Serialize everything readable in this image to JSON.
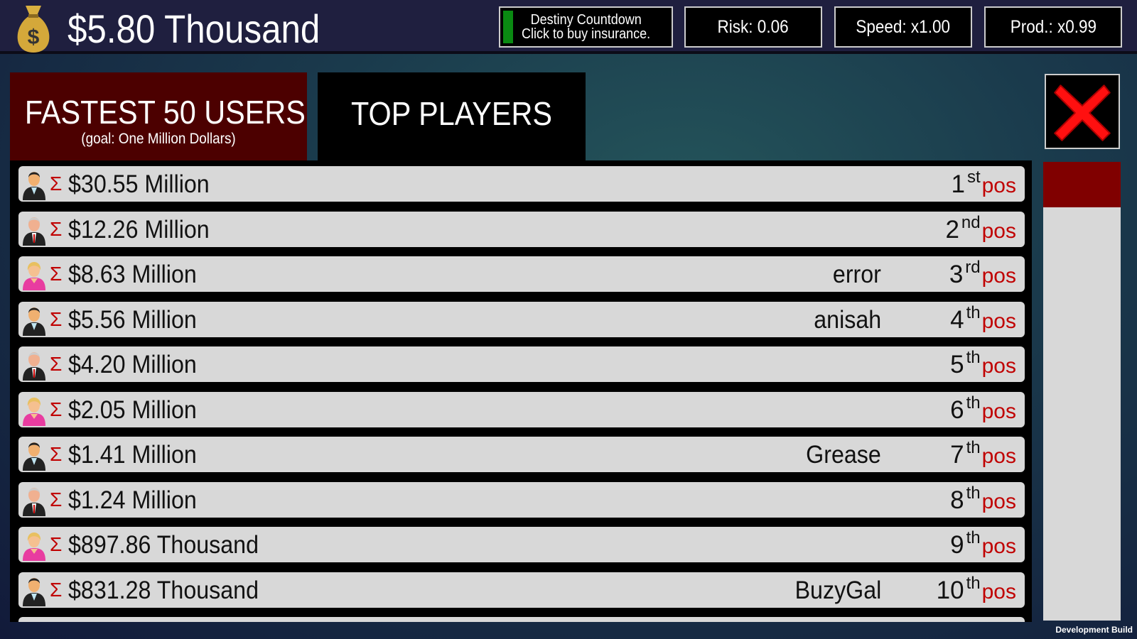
{
  "header": {
    "money": "$5.80 Thousand",
    "destiny_line1": "Destiny Countdown",
    "destiny_line2": "Click to buy insurance.",
    "risk": "Risk: 0.06",
    "speed": "Speed: x1.00",
    "prod": "Prod.: x0.99"
  },
  "tabs": [
    {
      "label": "FASTEST 50 USERS",
      "sub": "(goal: One Million Dollars)",
      "active": true
    },
    {
      "label": "TOP PLAYERS"
    }
  ],
  "sigma": "Σ",
  "pos_label": "pos",
  "rows": [
    {
      "avatar": "man-dark",
      "amount": "$30.55 Million",
      "name": "",
      "rank": "1",
      "suffix": "st"
    },
    {
      "avatar": "man-grey",
      "amount": "$12.26 Million",
      "name": "",
      "rank": "2",
      "suffix": "nd"
    },
    {
      "avatar": "woman",
      "amount": "$8.63 Million",
      "name": "error",
      "rank": "3",
      "suffix": "rd"
    },
    {
      "avatar": "man-dark",
      "amount": "$5.56 Million",
      "name": "anisah",
      "rank": "4",
      "suffix": "th"
    },
    {
      "avatar": "man-grey",
      "amount": "$4.20 Million",
      "name": "",
      "rank": "5",
      "suffix": "th"
    },
    {
      "avatar": "woman",
      "amount": "$2.05 Million",
      "name": "",
      "rank": "6",
      "suffix": "th"
    },
    {
      "avatar": "man-dark",
      "amount": "$1.41 Million",
      "name": "Grease",
      "rank": "7",
      "suffix": "th"
    },
    {
      "avatar": "man-grey",
      "amount": "$1.24 Million",
      "name": "",
      "rank": "8",
      "suffix": "th"
    },
    {
      "avatar": "woman",
      "amount": "$897.86 Thousand",
      "name": "",
      "rank": "9",
      "suffix": "th"
    },
    {
      "avatar": "man-dark",
      "amount": "$831.28 Thousand",
      "name": "BuzyGal",
      "rank": "10",
      "suffix": "th"
    }
  ],
  "footer": "Development Build",
  "colors": {
    "accent_red": "#c00000",
    "tab_active": "#4c0000",
    "scroll_thumb": "#800000"
  }
}
